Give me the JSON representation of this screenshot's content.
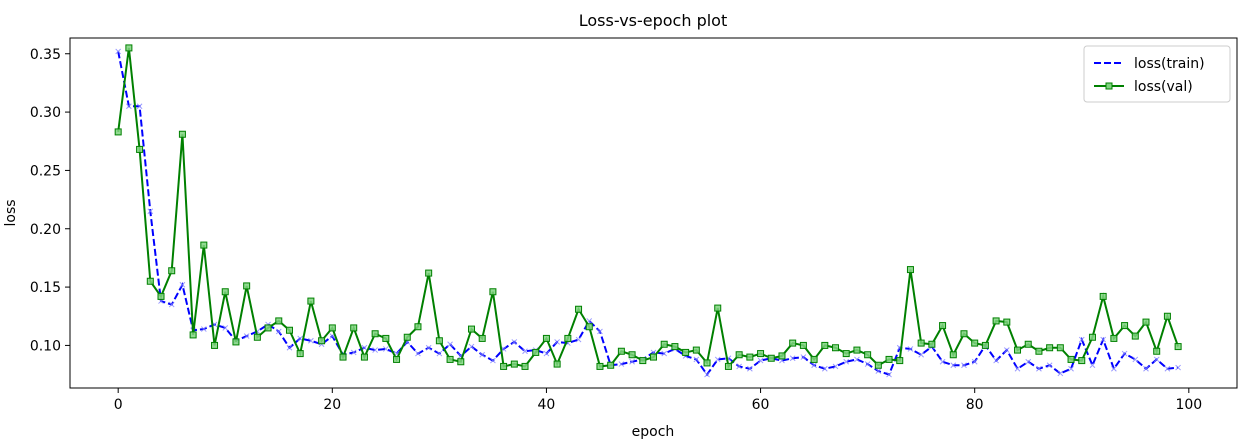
{
  "chart_data": {
    "type": "line",
    "title": "Loss-vs-epoch plot",
    "xlabel": "epoch",
    "ylabel": "loss",
    "xlim": [
      -4.5,
      104.5
    ],
    "ylim": [
      0.0635,
      0.3635
    ],
    "xticks": [
      0,
      20,
      40,
      60,
      80,
      100
    ],
    "yticks": [
      0.1,
      0.15,
      0.2,
      0.25,
      0.3,
      0.35
    ],
    "ytick_labels": [
      "0.10",
      "0.15",
      "0.20",
      "0.25",
      "0.30",
      "0.35"
    ],
    "grid": false,
    "legend_position": "top-right",
    "series": [
      {
        "name": "loss(train)",
        "color": "#0000ff",
        "line_style": "dashed",
        "marker": "x",
        "x": [
          0,
          1,
          2,
          3,
          4,
          5,
          6,
          7,
          8,
          9,
          10,
          11,
          12,
          13,
          14,
          15,
          16,
          17,
          18,
          19,
          20,
          21,
          22,
          23,
          24,
          25,
          26,
          27,
          28,
          29,
          30,
          31,
          32,
          33,
          34,
          35,
          36,
          37,
          38,
          39,
          40,
          41,
          42,
          43,
          44,
          45,
          46,
          47,
          48,
          49,
          50,
          51,
          52,
          53,
          54,
          55,
          56,
          57,
          58,
          59,
          60,
          61,
          62,
          63,
          64,
          65,
          66,
          67,
          68,
          69,
          70,
          71,
          72,
          73,
          74,
          75,
          76,
          77,
          78,
          79,
          80,
          81,
          82,
          83,
          84,
          85,
          86,
          87,
          88,
          89,
          90,
          91,
          92,
          93,
          94,
          95,
          96,
          97,
          98,
          99
        ],
        "y": [
          0.352,
          0.305,
          0.305,
          0.215,
          0.138,
          0.135,
          0.152,
          0.113,
          0.114,
          0.118,
          0.115,
          0.104,
          0.108,
          0.112,
          0.118,
          0.112,
          0.098,
          0.106,
          0.104,
          0.101,
          0.108,
          0.092,
          0.094,
          0.098,
          0.096,
          0.097,
          0.093,
          0.103,
          0.093,
          0.098,
          0.093,
          0.101,
          0.091,
          0.099,
          0.092,
          0.087,
          0.097,
          0.103,
          0.095,
          0.096,
          0.093,
          0.103,
          0.102,
          0.105,
          0.121,
          0.112,
          0.083,
          0.084,
          0.086,
          0.088,
          0.094,
          0.093,
          0.097,
          0.091,
          0.088,
          0.075,
          0.088,
          0.089,
          0.082,
          0.08,
          0.087,
          0.089,
          0.087,
          0.089,
          0.09,
          0.083,
          0.08,
          0.082,
          0.086,
          0.088,
          0.084,
          0.078,
          0.075,
          0.098,
          0.097,
          0.092,
          0.099,
          0.086,
          0.083,
          0.083,
          0.086,
          0.1,
          0.087,
          0.096,
          0.08,
          0.086,
          0.08,
          0.083,
          0.076,
          0.08,
          0.105,
          0.083,
          0.105,
          0.08,
          0.093,
          0.088,
          0.08,
          0.088,
          0.08,
          0.081
        ]
      },
      {
        "name": "loss(val)",
        "color": "#008000",
        "line_style": "solid",
        "marker": "square",
        "x": [
          0,
          1,
          2,
          3,
          4,
          5,
          6,
          7,
          8,
          9,
          10,
          11,
          12,
          13,
          14,
          15,
          16,
          17,
          18,
          19,
          20,
          21,
          22,
          23,
          24,
          25,
          26,
          27,
          28,
          29,
          30,
          31,
          32,
          33,
          34,
          35,
          36,
          37,
          38,
          39,
          40,
          41,
          42,
          43,
          44,
          45,
          46,
          47,
          48,
          49,
          50,
          51,
          52,
          53,
          54,
          55,
          56,
          57,
          58,
          59,
          60,
          61,
          62,
          63,
          64,
          65,
          66,
          67,
          68,
          69,
          70,
          71,
          72,
          73,
          74,
          75,
          76,
          77,
          78,
          79,
          80,
          81,
          82,
          83,
          84,
          85,
          86,
          87,
          88,
          89,
          90,
          91,
          92,
          93,
          94,
          95,
          96,
          97,
          98,
          99
        ],
        "y": [
          0.283,
          0.355,
          0.268,
          0.155,
          0.142,
          0.164,
          0.281,
          0.109,
          0.186,
          0.1,
          0.146,
          0.103,
          0.151,
          0.107,
          0.115,
          0.121,
          0.113,
          0.093,
          0.138,
          0.104,
          0.115,
          0.09,
          0.115,
          0.09,
          0.11,
          0.106,
          0.088,
          0.107,
          0.116,
          0.162,
          0.104,
          0.088,
          0.086,
          0.114,
          0.106,
          0.146,
          0.082,
          0.084,
          0.082,
          0.094,
          0.106,
          0.084,
          0.106,
          0.131,
          0.116,
          0.082,
          0.083,
          0.095,
          0.092,
          0.087,
          0.09,
          0.101,
          0.099,
          0.094,
          0.096,
          0.085,
          0.132,
          0.082,
          0.092,
          0.09,
          0.093,
          0.089,
          0.091,
          0.102,
          0.1,
          0.088,
          0.1,
          0.098,
          0.093,
          0.096,
          0.092,
          0.083,
          0.088,
          0.087,
          0.165,
          0.102,
          0.101,
          0.117,
          0.092,
          0.11,
          0.102,
          0.1,
          0.121,
          0.12,
          0.096,
          0.101,
          0.095,
          0.098,
          0.098,
          0.088,
          0.087,
          0.107,
          0.142,
          0.106,
          0.117,
          0.108,
          0.12,
          0.095,
          0.125,
          0.099
        ]
      }
    ]
  }
}
